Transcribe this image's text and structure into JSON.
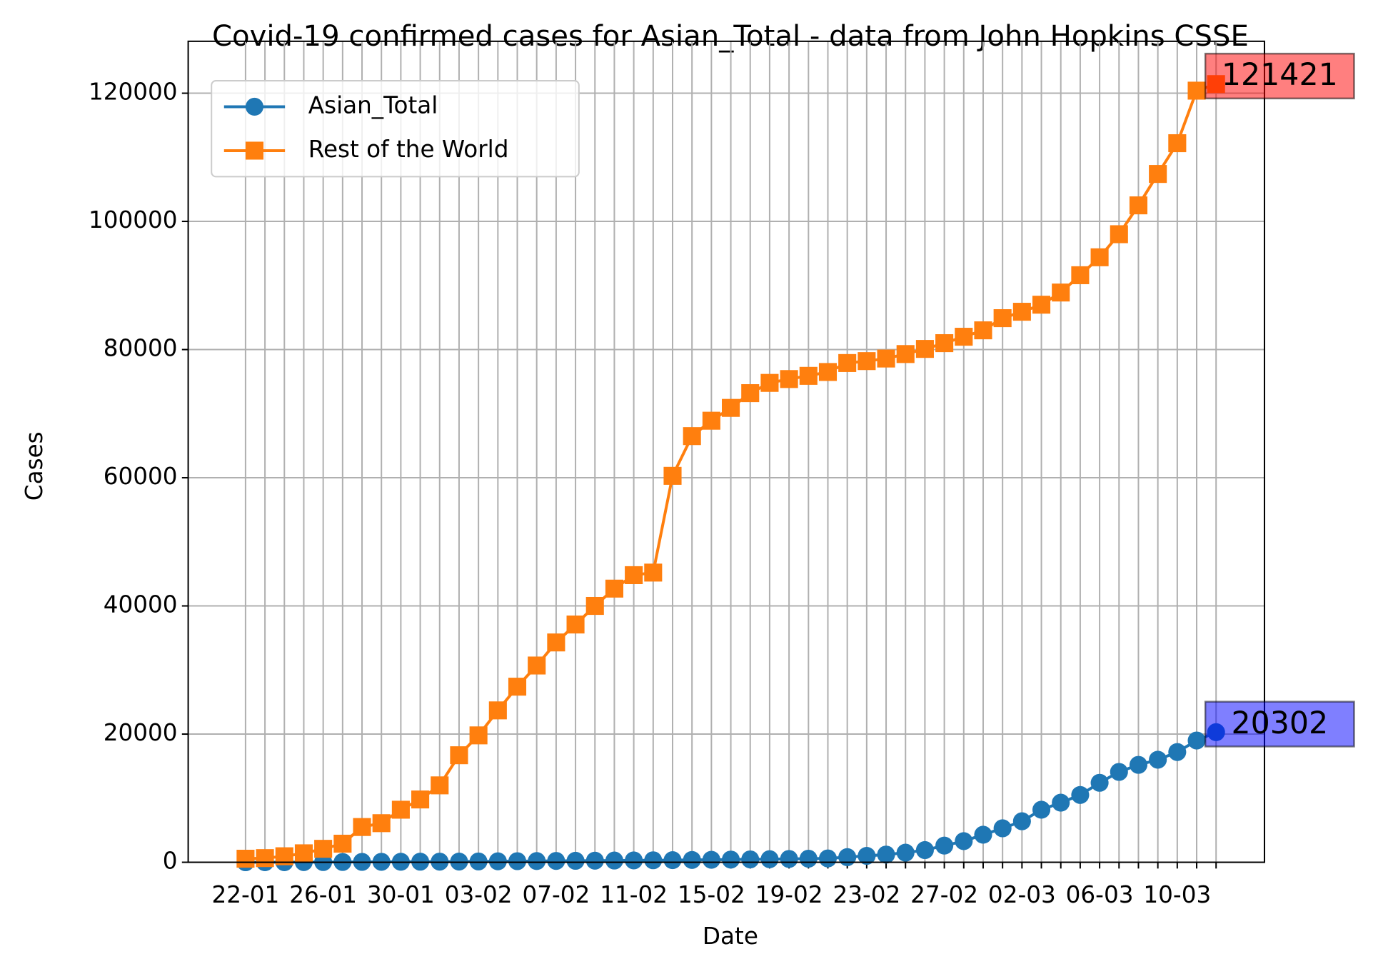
{
  "chart_data": {
    "type": "line",
    "title": "Covid-19 confirmed cases for Asian_Total - data from John Hopkins CSSE",
    "x_label": "Date",
    "y_label": "Cases",
    "categories": [
      "22-01",
      null,
      null,
      null,
      "26-01",
      null,
      null,
      null,
      "30-01",
      null,
      null,
      null,
      "03-02",
      null,
      null,
      null,
      "07-02",
      null,
      null,
      null,
      "11-02",
      null,
      null,
      null,
      "15-02",
      null,
      null,
      null,
      "19-02",
      null,
      null,
      null,
      "23-02",
      null,
      null,
      null,
      "27-02",
      null,
      null,
      null,
      "02-03",
      null,
      null,
      null,
      "06-03",
      null,
      null,
      null,
      "10-03",
      null,
      null
    ],
    "series": [
      {
        "name": "Asian_Total",
        "color": "#1f77b4",
        "marker": "circle",
        "values": [
          6,
          10,
          15,
          25,
          35,
          45,
          60,
          70,
          80,
          90,
          100,
          110,
          130,
          150,
          170,
          190,
          210,
          230,
          250,
          270,
          290,
          310,
          330,
          360,
          390,
          420,
          450,
          480,
          520,
          560,
          600,
          800,
          1000,
          1200,
          1500,
          1900,
          2600,
          3300,
          4300,
          5300,
          6400,
          8200,
          9300,
          10500,
          12400,
          14100,
          15200,
          16000,
          17200,
          19000,
          20302
        ]
      },
      {
        "name": "Rest of the World",
        "color": "#ff7f0e",
        "marker": "square",
        "values": [
          555,
          650,
          940,
          1400,
          2100,
          2900,
          5500,
          6100,
          8200,
          9800,
          12000,
          16700,
          19800,
          23700,
          27400,
          30700,
          34300,
          37100,
          40000,
          42700,
          44800,
          45200,
          60300,
          66500,
          68900,
          70900,
          73200,
          74800,
          75400,
          75900,
          76500,
          77900,
          78200,
          78600,
          79300,
          80100,
          81000,
          82000,
          83000,
          84900,
          85900,
          87000,
          88900,
          91600,
          94400,
          98000,
          102500,
          107400,
          112200,
          120400,
          121421
        ]
      }
    ],
    "ylim": [
      0,
      128100
    ],
    "yticks": [
      0,
      20000,
      40000,
      60000,
      80000,
      100000,
      120000
    ],
    "grid": true,
    "legend": "upper-left"
  }
}
